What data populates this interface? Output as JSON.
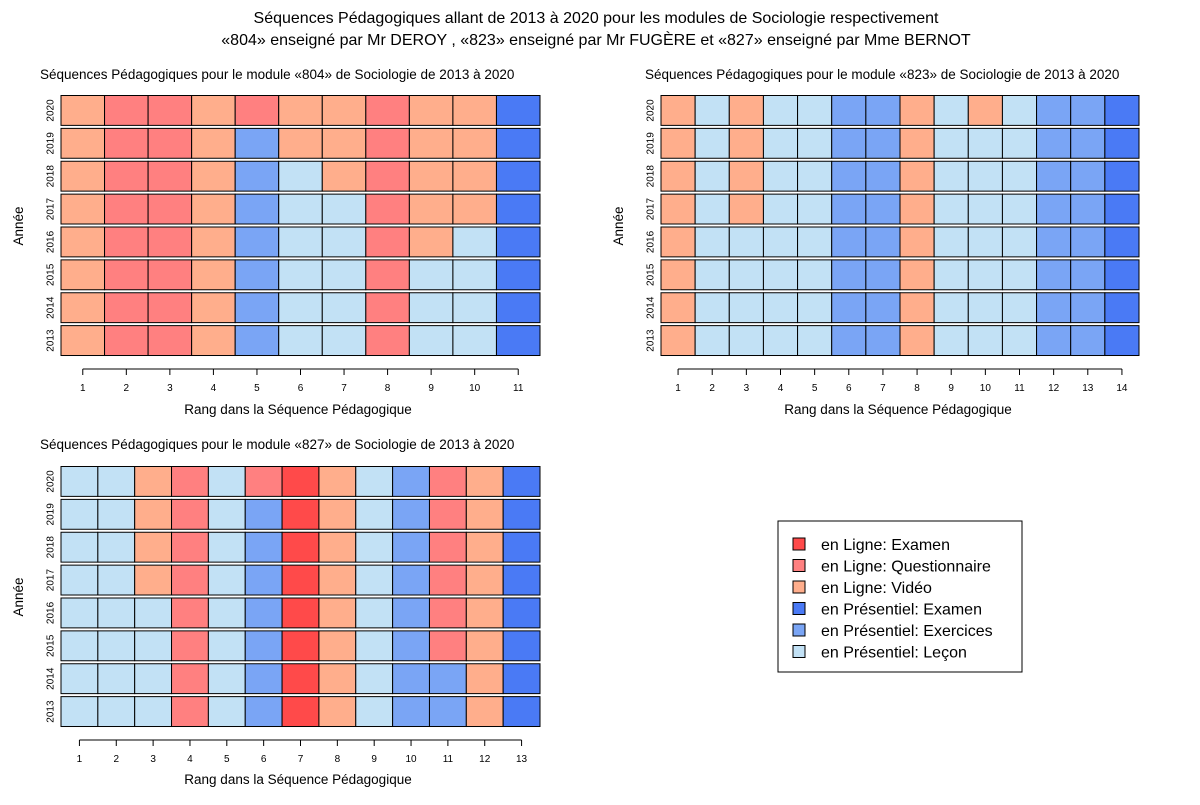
{
  "title": {
    "line1": "Séquences Pédagogiques allant de 2013 à 2020 pour les modules de Sociologie respectivement",
    "line2": "«804» enseigné par Mr DEROY , «823» enseigné par Mr FUGÈRE et «827» enseigné par Mme BERNOT"
  },
  "colors": {
    "L_EX": "#ff4a4a",
    "L_QU": "#ff8080",
    "L_VI": "#ffae8c",
    "P_EX": "#4a7af5",
    "P_EXO": "#7aa5f5",
    "P_LE": "#c2e1f5"
  },
  "legend": {
    "items": [
      {
        "key": "L_EX",
        "label": "en Ligne: Examen"
      },
      {
        "key": "L_QU",
        "label": "en Ligne: Questionnaire"
      },
      {
        "key": "L_VI",
        "label": "en Ligne: Vidéo"
      },
      {
        "key": "P_EX",
        "label": "en Présentiel: Examen"
      },
      {
        "key": "P_EXO",
        "label": "en Présentiel: Exercices"
      },
      {
        "key": "P_LE",
        "label": "en Présentiel: Leçon"
      }
    ]
  },
  "chart_data": [
    {
      "type": "heatmap",
      "title": "Séquences Pédagogiques pour le module «804» de Sociologie de 2013 à 2020",
      "xlabel": "Rang dans la Séquence Pédagogique",
      "ylabel": "Année",
      "x": [
        1,
        2,
        3,
        4,
        5,
        6,
        7,
        8,
        9,
        10,
        11
      ],
      "y": [
        "2020",
        "2019",
        "2018",
        "2017",
        "2016",
        "2015",
        "2014",
        "2013"
      ],
      "cells": [
        [
          "L_VI",
          "L_QU",
          "L_QU",
          "L_VI",
          "L_QU",
          "L_VI",
          "L_VI",
          "L_QU",
          "L_VI",
          "L_VI",
          "P_EX"
        ],
        [
          "L_VI",
          "L_QU",
          "L_QU",
          "L_VI",
          "P_EXO",
          "L_VI",
          "L_VI",
          "L_QU",
          "L_VI",
          "L_VI",
          "P_EX"
        ],
        [
          "L_VI",
          "L_QU",
          "L_QU",
          "L_VI",
          "P_EXO",
          "P_LE",
          "L_VI",
          "L_QU",
          "L_VI",
          "L_VI",
          "P_EX"
        ],
        [
          "L_VI",
          "L_QU",
          "L_QU",
          "L_VI",
          "P_EXO",
          "P_LE",
          "P_LE",
          "L_QU",
          "L_VI",
          "L_VI",
          "P_EX"
        ],
        [
          "L_VI",
          "L_QU",
          "L_QU",
          "L_VI",
          "P_EXO",
          "P_LE",
          "P_LE",
          "L_QU",
          "L_VI",
          "P_LE",
          "P_EX"
        ],
        [
          "L_VI",
          "L_QU",
          "L_QU",
          "L_VI",
          "P_EXO",
          "P_LE",
          "P_LE",
          "L_QU",
          "P_LE",
          "P_LE",
          "P_EX"
        ],
        [
          "L_VI",
          "L_QU",
          "L_QU",
          "L_VI",
          "P_EXO",
          "P_LE",
          "P_LE",
          "L_QU",
          "P_LE",
          "P_LE",
          "P_EX"
        ],
        [
          "L_VI",
          "L_QU",
          "L_QU",
          "L_VI",
          "P_EXO",
          "P_LE",
          "P_LE",
          "L_QU",
          "P_LE",
          "P_LE",
          "P_EX"
        ]
      ]
    },
    {
      "type": "heatmap",
      "title": "Séquences Pédagogiques pour le module «823» de Sociologie de 2013 à 2020",
      "xlabel": "Rang dans la Séquence Pédagogique",
      "ylabel": "Année",
      "x": [
        1,
        2,
        3,
        4,
        5,
        6,
        7,
        8,
        9,
        10,
        11,
        12,
        13,
        14
      ],
      "y": [
        "2020",
        "2019",
        "2018",
        "2017",
        "2016",
        "2015",
        "2014",
        "2013"
      ],
      "cells": [
        [
          "L_VI",
          "P_LE",
          "L_VI",
          "P_LE",
          "P_LE",
          "P_EXO",
          "P_EXO",
          "L_VI",
          "P_LE",
          "L_VI",
          "P_LE",
          "P_EXO",
          "P_EXO",
          "P_EX"
        ],
        [
          "L_VI",
          "P_LE",
          "L_VI",
          "P_LE",
          "P_LE",
          "P_EXO",
          "P_EXO",
          "L_VI",
          "P_LE",
          "P_LE",
          "P_LE",
          "P_EXO",
          "P_EXO",
          "P_EX"
        ],
        [
          "L_VI",
          "P_LE",
          "L_VI",
          "P_LE",
          "P_LE",
          "P_EXO",
          "P_EXO",
          "L_VI",
          "P_LE",
          "P_LE",
          "P_LE",
          "P_EXO",
          "P_EXO",
          "P_EX"
        ],
        [
          "L_VI",
          "P_LE",
          "L_VI",
          "P_LE",
          "P_LE",
          "P_EXO",
          "P_EXO",
          "L_VI",
          "P_LE",
          "P_LE",
          "P_LE",
          "P_EXO",
          "P_EXO",
          "P_EX"
        ],
        [
          "L_VI",
          "P_LE",
          "P_LE",
          "P_LE",
          "P_LE",
          "P_EXO",
          "P_EXO",
          "L_VI",
          "P_LE",
          "P_LE",
          "P_LE",
          "P_EXO",
          "P_EXO",
          "P_EX"
        ],
        [
          "L_VI",
          "P_LE",
          "P_LE",
          "P_LE",
          "P_LE",
          "P_EXO",
          "P_EXO",
          "L_VI",
          "P_LE",
          "P_LE",
          "P_LE",
          "P_EXO",
          "P_EXO",
          "P_EX"
        ],
        [
          "L_VI",
          "P_LE",
          "P_LE",
          "P_LE",
          "P_LE",
          "P_EXO",
          "P_EXO",
          "L_VI",
          "P_LE",
          "P_LE",
          "P_LE",
          "P_EXO",
          "P_EXO",
          "P_EX"
        ],
        [
          "L_VI",
          "P_LE",
          "P_LE",
          "P_LE",
          "P_LE",
          "P_EXO",
          "P_EXO",
          "L_VI",
          "P_LE",
          "P_LE",
          "P_LE",
          "P_EXO",
          "P_EXO",
          "P_EX"
        ]
      ]
    },
    {
      "type": "heatmap",
      "title": "Séquences Pédagogiques pour le module «827» de Sociologie de 2013 à 2020",
      "xlabel": "Rang dans la Séquence Pédagogique",
      "ylabel": "Année",
      "x": [
        1,
        2,
        3,
        4,
        5,
        6,
        7,
        8,
        9,
        10,
        11,
        12,
        13
      ],
      "y": [
        "2020",
        "2019",
        "2018",
        "2017",
        "2016",
        "2015",
        "2014",
        "2013"
      ],
      "cells": [
        [
          "P_LE",
          "P_LE",
          "L_VI",
          "L_QU",
          "P_LE",
          "L_QU",
          "L_EX",
          "L_VI",
          "P_LE",
          "P_EXO",
          "L_QU",
          "L_VI",
          "P_EX"
        ],
        [
          "P_LE",
          "P_LE",
          "L_VI",
          "L_QU",
          "P_LE",
          "P_EXO",
          "L_EX",
          "L_VI",
          "P_LE",
          "P_EXO",
          "L_QU",
          "L_VI",
          "P_EX"
        ],
        [
          "P_LE",
          "P_LE",
          "L_VI",
          "L_QU",
          "P_LE",
          "P_EXO",
          "L_EX",
          "L_VI",
          "P_LE",
          "P_EXO",
          "L_QU",
          "L_VI",
          "P_EX"
        ],
        [
          "P_LE",
          "P_LE",
          "L_VI",
          "L_QU",
          "P_LE",
          "P_EXO",
          "L_EX",
          "L_VI",
          "P_LE",
          "P_EXO",
          "L_QU",
          "L_VI",
          "P_EX"
        ],
        [
          "P_LE",
          "P_LE",
          "P_LE",
          "L_QU",
          "P_LE",
          "P_EXO",
          "L_EX",
          "L_VI",
          "P_LE",
          "P_EXO",
          "L_QU",
          "L_VI",
          "P_EX"
        ],
        [
          "P_LE",
          "P_LE",
          "P_LE",
          "L_QU",
          "P_LE",
          "P_EXO",
          "L_EX",
          "L_VI",
          "P_LE",
          "P_EXO",
          "L_QU",
          "L_VI",
          "P_EX"
        ],
        [
          "P_LE",
          "P_LE",
          "P_LE",
          "L_QU",
          "P_LE",
          "P_EXO",
          "L_EX",
          "L_VI",
          "P_LE",
          "P_EXO",
          "P_EXO",
          "L_VI",
          "P_EX"
        ],
        [
          "P_LE",
          "P_LE",
          "P_LE",
          "L_QU",
          "P_LE",
          "P_EXO",
          "L_EX",
          "L_VI",
          "P_LE",
          "P_EXO",
          "P_EXO",
          "L_VI",
          "P_EX"
        ]
      ]
    }
  ]
}
